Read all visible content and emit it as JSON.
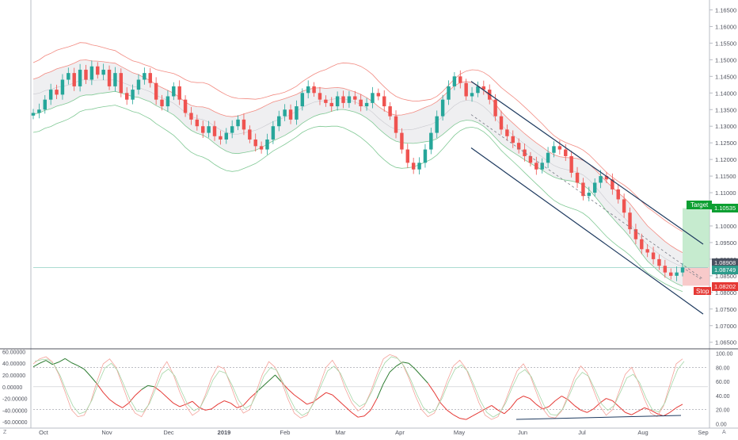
{
  "chart_data": {
    "type": "candlestick",
    "main_panel": {
      "price_axis_ticks": [
        "1.16500",
        "1.16000",
        "1.15500",
        "1.15000",
        "1.14500",
        "1.14000",
        "1.13500",
        "1.13000",
        "1.12500",
        "1.12000",
        "1.11500",
        "1.11000",
        "1.10500",
        "1.10000",
        "1.09500",
        "1.09000",
        "1.08500",
        "1.08000",
        "1.07500",
        "1.07000",
        "1.06500"
      ],
      "ylim": [
        1.0635,
        1.1675
      ],
      "labels": {
        "target": "Target",
        "target_price": "1.10535",
        "last_price": "1.08908",
        "current_price": "1.08749",
        "stop": "Stop",
        "stop_price": "1.08202"
      },
      "position": {
        "entry": 1.0875,
        "target": 1.10535,
        "stop": 1.08202
      },
      "channel": {
        "upper": [
          [
            0,
            1.1435
          ],
          [
            148,
            1.0945
          ]
        ],
        "lower": [
          [
            0,
            1.1235
          ],
          [
            148,
            1.0735
          ]
        ],
        "midline": [
          [
            0,
            1.1335
          ],
          [
            148,
            1.084
          ]
        ]
      },
      "candles_ohlc_approx": [
        1.134,
        1.135,
        1.138,
        1.141,
        1.1395,
        1.144,
        1.146,
        1.142,
        1.147,
        1.144,
        1.148,
        1.1455,
        1.147,
        1.142,
        1.146,
        1.14,
        1.138,
        1.141,
        1.144,
        1.146,
        1.143,
        1.138,
        1.136,
        1.139,
        1.142,
        1.138,
        1.134,
        1.132,
        1.13,
        1.128,
        1.13,
        1.127,
        1.126,
        1.128,
        1.13,
        1.132,
        1.129,
        1.126,
        1.124,
        1.123,
        1.126,
        1.13,
        1.133,
        1.135,
        1.132,
        1.136,
        1.14,
        1.142,
        1.14,
        1.138,
        1.137,
        1.136,
        1.139,
        1.137,
        1.139,
        1.138,
        1.136,
        1.137,
        1.14,
        1.139,
        1.136,
        1.133,
        1.128,
        1.123,
        1.119,
        1.117,
        1.119,
        1.123,
        1.128,
        1.133,
        1.138,
        1.142,
        1.145,
        1.143,
        1.139,
        1.14,
        1.142,
        1.141,
        1.138,
        1.133,
        1.129,
        1.127,
        1.125,
        1.123,
        1.121,
        1.119,
        1.117,
        1.119,
        1.122,
        1.124,
        1.123,
        1.121,
        1.116,
        1.113,
        1.109,
        1.11,
        1.113,
        1.115,
        1.114,
        1.111,
        1.108,
        1.104,
        1.099,
        1.096,
        1.093,
        1.092,
        1.09,
        1.088,
        1.086,
        1.085,
        1.086,
        1.0875
      ]
    },
    "oscillator_panel": {
      "left_axis_ticks": [
        "60.00000",
        "40.00000",
        "20.00000",
        "0.00000",
        "-20.00000",
        "-40.00000",
        "-60.00000"
      ],
      "left_range": [
        -68,
        62
      ],
      "right_axis_ticks": [
        "100.00",
        "80.00",
        "60.00",
        "40.00",
        "20.00",
        "0.00"
      ],
      "right_range": [
        -4,
        104
      ],
      "levels": [
        80,
        20
      ],
      "cci_approx": [
        34,
        40,
        45,
        38,
        42,
        48,
        41,
        36,
        30,
        18,
        5,
        -10,
        -22,
        -30,
        -36,
        -28,
        -15,
        -5,
        2,
        0,
        -8,
        -18,
        -28,
        -34,
        -30,
        -25,
        -35,
        -40,
        -38,
        -30,
        -24,
        -28,
        -36,
        -32,
        -20,
        -10,
        0,
        10,
        20,
        8,
        -4,
        -14,
        -22,
        -30,
        -26,
        -18,
        -10,
        -14,
        -24,
        -34,
        -44,
        -52,
        -50,
        -40,
        -20,
        5,
        25,
        35,
        42,
        40,
        30,
        18,
        6,
        -10,
        -28,
        -40,
        -48,
        -54,
        -56,
        -50,
        -44,
        -38,
        -32,
        -40,
        -46,
        -36,
        -22,
        -16,
        -20,
        -30,
        -38,
        -34,
        -24,
        -16,
        -22,
        -32,
        -40,
        -44,
        -38,
        -28,
        -20,
        -24,
        -34,
        -44,
        -48,
        -42,
        -36,
        -40,
        -46,
        -50,
        -44,
        -36,
        -30
      ],
      "stoch_approx": [
        85,
        92,
        95,
        88,
        70,
        45,
        20,
        10,
        12,
        30,
        60,
        85,
        92,
        80,
        55,
        30,
        15,
        10,
        25,
        50,
        75,
        88,
        70,
        45,
        25,
        12,
        18,
        40,
        65,
        82,
        78,
        55,
        30,
        15,
        20,
        45,
        70,
        88,
        80,
        60,
        35,
        15,
        8,
        12,
        30,
        55,
        80,
        90,
        75,
        50,
        30,
        18,
        25,
        45,
        70,
        92,
        98,
        95,
        85,
        65,
        40,
        20,
        10,
        15,
        35,
        60,
        82,
        90,
        78,
        55,
        30,
        12,
        6,
        10,
        28,
        52,
        75,
        85,
        70,
        45,
        22,
        10,
        8,
        18,
        40,
        65,
        82,
        72,
        48,
        25,
        12,
        20,
        45,
        70,
        80,
        60,
        35,
        15,
        10,
        25,
        55,
        85,
        92
      ]
    },
    "time_axis_ticks": [
      "Oct",
      "Nov",
      "Dec",
      "2019",
      "Feb",
      "Mar",
      "Apr",
      "May",
      "Jun",
      "Jul",
      "Aug",
      "Sep"
    ]
  }
}
